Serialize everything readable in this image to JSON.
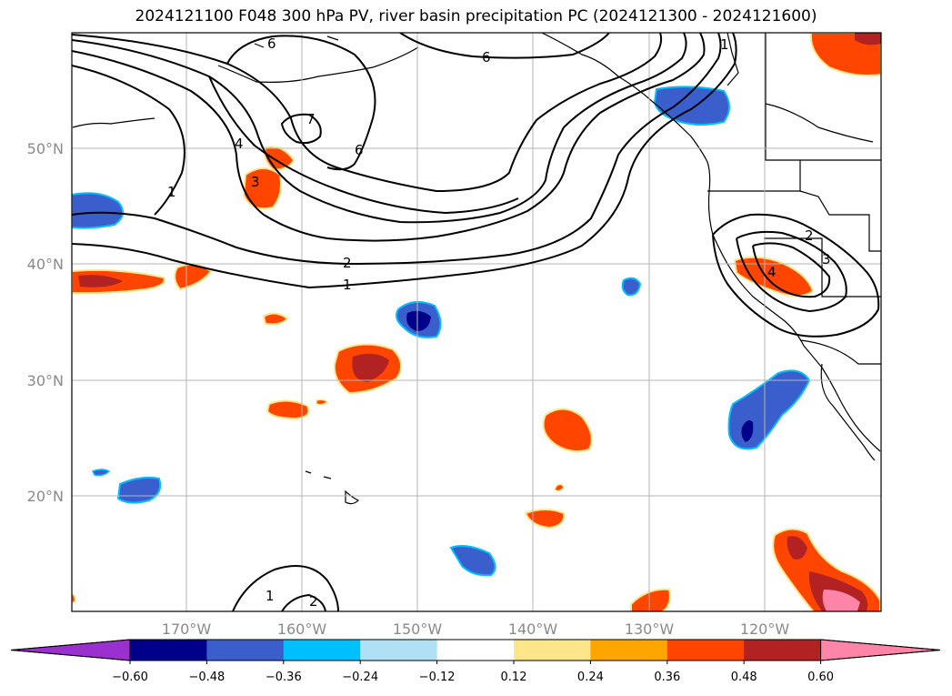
{
  "title": "2024121100 F048 300 hPa PV, river basin precipitation PC (2024121300 - 2024121600)",
  "map": {
    "lon_labels": [
      "170°W",
      "160°W",
      "150°W",
      "140°W",
      "130°W",
      "120°W"
    ],
    "lat_labels": [
      "50°N",
      "40°N",
      "30°N",
      "20°N"
    ],
    "contour_labels": [
      "6",
      "6",
      "7",
      "6",
      "4",
      "3",
      "1",
      "2",
      "1",
      "1",
      "2",
      "3",
      "4",
      "2",
      "1"
    ]
  },
  "colorbar": {
    "ticks": [
      "−0.60",
      "−0.48",
      "−0.36",
      "−0.24",
      "−0.12",
      "0.12",
      "0.24",
      "0.36",
      "0.48",
      "0.60"
    ],
    "colors": [
      "#9b30d0",
      "#00008b",
      "#3a5fcd",
      "#00bfff",
      "#b0e0f5",
      "#ffffff",
      "#fde68a",
      "#ffa500",
      "#ff4500",
      "#b22222",
      "#ff85a8"
    ]
  }
}
